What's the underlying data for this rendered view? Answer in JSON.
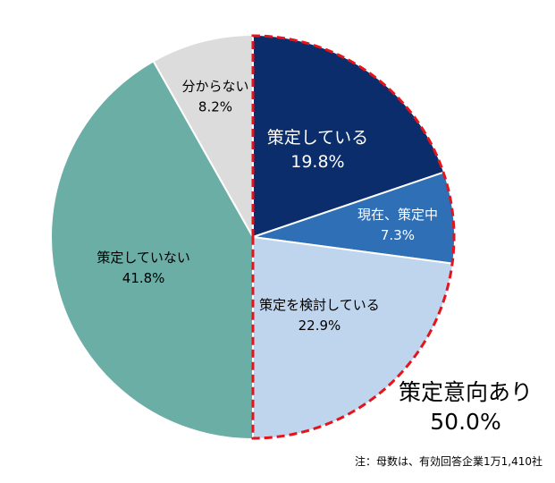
{
  "chart_data": {
    "type": "pie",
    "start": "top",
    "direction": "clockwise",
    "slices": [
      {
        "label": "策定している",
        "value": 19.8,
        "value_label": "19.8%",
        "color": "#0b2d6b",
        "text_color": "#ffffff"
      },
      {
        "label": "現在、策定中",
        "value": 7.3,
        "value_label": "7.3%",
        "color": "#2f6fb5",
        "text_color": "#ffffff"
      },
      {
        "label": "策定を検討している",
        "value": 22.9,
        "value_label": "22.9%",
        "color": "#bfd5ee",
        "text_color": "#000000"
      },
      {
        "label": "策定していない",
        "value": 41.8,
        "value_label": "41.8%",
        "color": "#6aaea6",
        "text_color": "#000000"
      },
      {
        "label": "分からない",
        "value": 8.2,
        "value_label": "8.2%",
        "color": "#dcdcdc",
        "text_color": "#000000"
      }
    ],
    "highlight": {
      "label": "策定意向あり",
      "value": 50.0,
      "value_label": "50.0%",
      "outline_color": "#e3141b",
      "style": "dashed"
    }
  },
  "note": "注：母数は、有効回答企業1万1,410社"
}
